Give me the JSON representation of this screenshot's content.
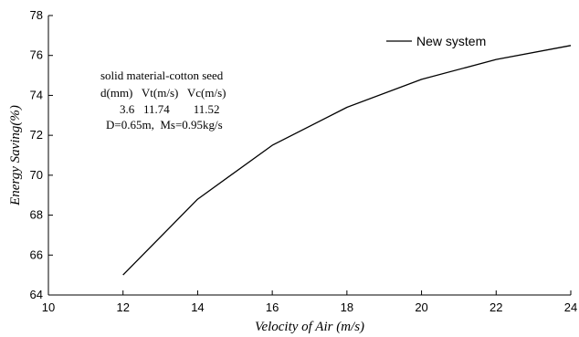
{
  "chart_data": {
    "type": "line",
    "xlabel": "Velocity of Air (m/s)",
    "ylabel": "Energy Saving(%)",
    "xlim": [
      10,
      24
    ],
    "ylim": [
      64,
      78
    ],
    "xticks": [
      "10",
      "12",
      "14",
      "16",
      "18",
      "20",
      "22",
      "24"
    ],
    "yticks": [
      "64",
      "66",
      "68",
      "70",
      "72",
      "74",
      "76",
      "78"
    ],
    "grid": false,
    "legend": {
      "placement": "top-right",
      "entries": [
        "New system"
      ]
    },
    "series": [
      {
        "name": "New system",
        "color": "#000000",
        "x": [
          12,
          14,
          16,
          18,
          20,
          22,
          24
        ],
        "y": [
          65.0,
          68.8,
          71.5,
          73.4,
          74.8,
          75.8,
          76.5
        ]
      }
    ],
    "annotation": {
      "lines": [
        "solid material-cotton seed",
        "d(mm)   Vt(m/s)   Vc(m/s)",
        "3.6   11.74        11.52",
        "D=0.65m,  Ms=0.95kg/s"
      ]
    }
  }
}
